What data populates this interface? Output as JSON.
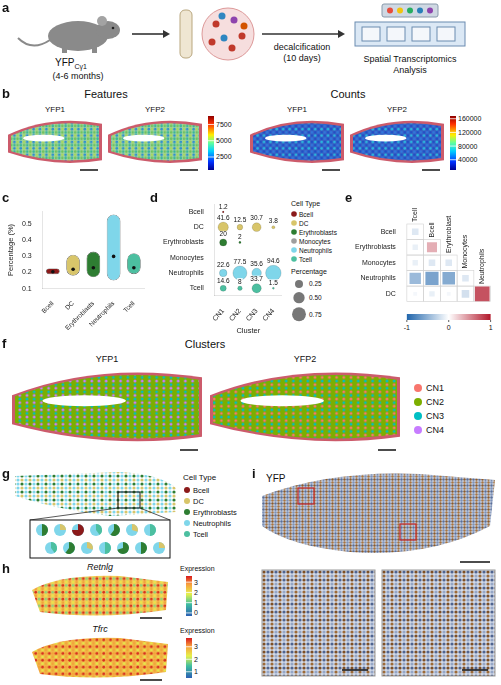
{
  "panel_letters": [
    "a",
    "b",
    "c",
    "d",
    "e",
    "f",
    "g",
    "h",
    "i"
  ],
  "a": {
    "mouse_label": "YFP",
    "mouse_label_sub": "Cγ1",
    "mouse_age": "(4-6 months)",
    "step_label": [
      "decalcification",
      "(10 days)"
    ],
    "output_label": [
      "Spatial Transcriptomics",
      "Analysis"
    ]
  },
  "b": {
    "panels": [
      {
        "title": "Features",
        "colorbar": {
          "lim": [
            500,
            8800
          ],
          "ticks": [
            2500,
            5000,
            7500
          ]
        }
      },
      {
        "title": "Counts",
        "colorbar": {
          "lim": [
            10000,
            168000
          ],
          "ticks": [
            40000,
            80000,
            120000,
            160000
          ]
        }
      }
    ],
    "samples": [
      "YFP1",
      "YFP2"
    ]
  },
  "chart_data": [
    {
      "type": "violin",
      "categories": [
        "Bcell",
        "DC",
        "Erythroblasts",
        "Neutrophils",
        "Tcell"
      ],
      "ranges": [
        [
          0.19,
          0.225
        ],
        [
          0.18,
          0.31
        ],
        [
          0.17,
          0.33
        ],
        [
          0.15,
          0.56
        ],
        [
          0.19,
          0.32
        ]
      ],
      "medians": [
        0.205,
        0.22,
        0.23,
        0.3,
        0.23
      ],
      "colors": [
        "#8b1a1a",
        "#d8c56a",
        "#2e7d32",
        "#7fd6ea",
        "#4cbfa0"
      ],
      "ylabel": "Percentage (%)",
      "ylim": [
        0.1,
        0.58
      ],
      "yticks": [
        0.1,
        0.2,
        0.3,
        0.4,
        0.5
      ],
      "grid": false
    },
    {
      "type": "bubble",
      "categories": [
        "CN1",
        "CN2",
        "CN3",
        "CN4"
      ],
      "y_categories": [
        "Bcell",
        "DC",
        "Erythroblasts",
        "Monocytes",
        "Neutrophils",
        "Tcell"
      ],
      "xlabel": "Cluster",
      "series": [
        {
          "name": "Bcell",
          "color": "#8b1a1a",
          "values": [
            1.2,
            null,
            null,
            null
          ]
        },
        {
          "name": "DC",
          "color": "#d8c56a",
          "values": [
            41.6,
            12.5,
            30.7,
            3.8
          ]
        },
        {
          "name": "Erythroblasts",
          "color": "#2e7d32",
          "values": [
            20,
            2,
            null,
            null
          ]
        },
        {
          "name": "Monocytes",
          "color": "#9e9e9e",
          "values": [
            null,
            null,
            null,
            null
          ]
        },
        {
          "name": "Neutrophils",
          "color": "#7fd6ea",
          "values": [
            22.6,
            77.5,
            35.6,
            94.6
          ]
        },
        {
          "name": "Tcell",
          "color": "#4cbfa0",
          "values": [
            14.6,
            8,
            33.7,
            1.5
          ]
        }
      ],
      "data_labels": true,
      "legend": "right",
      "legend_title": "Cell Type",
      "size_legend": {
        "title": "Percentage",
        "values": [
          0.25,
          {
            "value": 0.5,
            "label": "0.50"
          },
          0.75
        ]
      }
    },
    {
      "type": "heatmap",
      "x_categories": [
        "Tcell",
        "Bcell",
        "Erythroblast",
        "Monocytes",
        "Neutrophils"
      ],
      "y_categories": [
        "Bcell",
        "Erythroblasts",
        "Monocytes",
        "Neutrophils",
        "DC"
      ],
      "cells": [
        [
          -0.15,
          null,
          null,
          null,
          null
        ],
        [
          -0.1,
          0.35,
          null,
          null,
          null
        ],
        [
          -0.1,
          -0.15,
          -0.15,
          null,
          null
        ],
        [
          -0.45,
          -0.6,
          -0.55,
          -0.15,
          null
        ],
        [
          -0.05,
          -0.1,
          -0.05,
          -0.2,
          0.75
        ]
      ],
      "colorbar": {
        "lim": [
          -1,
          1
        ],
        "ticks": [
          -1,
          0,
          1
        ]
      }
    }
  ],
  "f": {
    "title": "Clusters",
    "samples": [
      "YFP1",
      "YFP2"
    ],
    "legend": [
      {
        "name": "CN1",
        "color": "#f8766d"
      },
      {
        "name": "CN2",
        "color": "#7cae00"
      },
      {
        "name": "CN3",
        "color": "#00bfc4"
      },
      {
        "name": "CN4",
        "color": "#c77cff"
      }
    ]
  },
  "g": {
    "legend_title": "Cell Type",
    "legend": [
      {
        "name": "Bcell",
        "color": "#8b1a1a"
      },
      {
        "name": "DC",
        "color": "#d8c56a"
      },
      {
        "name": "Erythroblasts",
        "color": "#2e7d32"
      },
      {
        "name": "Neutrophils",
        "color": "#7fd6ea"
      },
      {
        "name": "Tcell",
        "color": "#4cbfa0"
      }
    ]
  },
  "h": {
    "maps": [
      {
        "gene": "Retnlg",
        "colorbar_title": "Expression",
        "lim": [
          -0.3,
          3.6
        ],
        "ticks": [
          0,
          1,
          2,
          3
        ]
      },
      {
        "gene": "Tfrc",
        "colorbar_title": "Expression",
        "lim": [
          0.5,
          3.7
        ],
        "ticks": [
          1,
          2,
          3
        ]
      }
    ]
  },
  "i": {
    "label": "YFP"
  }
}
